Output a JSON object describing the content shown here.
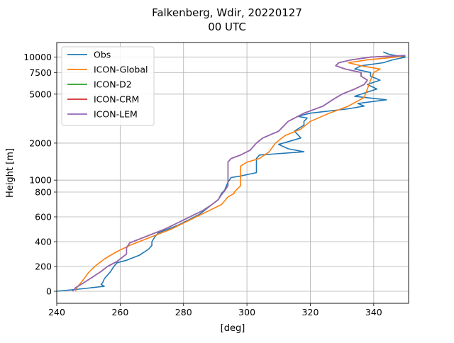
{
  "chart_data": {
    "type": "line",
    "title_line1": "Falkenberg, Wdir, 20220127",
    "title_line2": "00 UTC",
    "xlabel": "[deg]",
    "ylabel": "Height [m]",
    "xlim": [
      240,
      351
    ],
    "x_ticks": [
      240,
      260,
      280,
      300,
      320,
      340
    ],
    "y_ticks": [
      {
        "value": 0,
        "label": "0"
      },
      {
        "value": 200,
        "label": "200"
      },
      {
        "value": 400,
        "label": "400"
      },
      {
        "value": 600,
        "label": "600"
      },
      {
        "value": 800,
        "label": "800"
      },
      {
        "value": 1000,
        "label": "1000"
      },
      {
        "value": 2000,
        "label": "2000"
      },
      {
        "value": 5000,
        "label": "5000"
      },
      {
        "value": 7500,
        "label": "7500"
      },
      {
        "value": 10000,
        "label": "10000"
      }
    ],
    "y_scale": "piecewise linear 0-800 m, log above",
    "grid": true,
    "legend_position": "upper-left",
    "series": [
      {
        "name": "Obs",
        "color": "#1f77b4",
        "points": [
          [
            240,
            0
          ],
          [
            248,
            20
          ],
          [
            255,
            40
          ],
          [
            254,
            55
          ],
          [
            254.5,
            70
          ],
          [
            255,
            100
          ],
          [
            256,
            130
          ],
          [
            257,
            160
          ],
          [
            258,
            200
          ],
          [
            259,
            230
          ],
          [
            262,
            250
          ],
          [
            266,
            290
          ],
          [
            269,
            340
          ],
          [
            270,
            370
          ],
          [
            270,
            400
          ],
          [
            271,
            440
          ],
          [
            272,
            470
          ],
          [
            274,
            490
          ],
          [
            278,
            530
          ],
          [
            282,
            580
          ],
          [
            285,
            620
          ],
          [
            287,
            660
          ],
          [
            289,
            700
          ],
          [
            291,
            740
          ],
          [
            292,
            790
          ],
          [
            293,
            830
          ],
          [
            293.5,
            900
          ],
          [
            294,
            960
          ],
          [
            295,
            1050
          ],
          [
            298,
            1080
          ],
          [
            303,
            1150
          ],
          [
            303,
            1300
          ],
          [
            303,
            1500
          ],
          [
            304,
            1600
          ],
          [
            318,
            1700
          ],
          [
            313,
            1800
          ],
          [
            310,
            1950
          ],
          [
            317,
            2200
          ],
          [
            315,
            2500
          ],
          [
            318,
            2800
          ],
          [
            318,
            3000
          ],
          [
            319,
            3200
          ],
          [
            316,
            3300
          ],
          [
            320,
            3500
          ],
          [
            332,
            3800
          ],
          [
            337,
            4000
          ],
          [
            335,
            4200
          ],
          [
            344,
            4500
          ],
          [
            334,
            4800
          ],
          [
            338,
            5200
          ],
          [
            341,
            5500
          ],
          [
            338,
            6000
          ],
          [
            342,
            6500
          ],
          [
            339,
            7000
          ],
          [
            339,
            7500
          ],
          [
            334,
            8000
          ],
          [
            336,
            8500
          ],
          [
            343,
            9000
          ],
          [
            346,
            9500
          ],
          [
            350,
            10000
          ],
          [
            345,
            10500
          ],
          [
            343,
            11000
          ]
        ]
      },
      {
        "name": "ICON-Global",
        "color": "#ff7f0e",
        "points": [
          [
            246,
            0
          ],
          [
            246,
            20
          ],
          [
            248,
            80
          ],
          [
            250,
            150
          ],
          [
            252,
            200
          ],
          [
            255,
            260
          ],
          [
            259,
            320
          ],
          [
            263,
            370
          ],
          [
            268,
            420
          ],
          [
            272,
            460
          ],
          [
            276,
            500
          ],
          [
            280,
            550
          ],
          [
            284,
            600
          ],
          [
            288,
            650
          ],
          [
            292,
            700
          ],
          [
            294,
            760
          ],
          [
            296,
            790
          ],
          [
            296,
            800
          ],
          [
            297,
            850
          ],
          [
            298,
            900
          ],
          [
            298,
            1000
          ],
          [
            298,
            1200
          ],
          [
            298,
            1300
          ],
          [
            300,
            1400
          ],
          [
            304,
            1500
          ],
          [
            307,
            1700
          ],
          [
            309,
            2000
          ],
          [
            312,
            2300
          ],
          [
            317,
            2600
          ],
          [
            320,
            3000
          ],
          [
            326,
            3500
          ],
          [
            332,
            4000
          ],
          [
            337,
            4700
          ],
          [
            338,
            5500
          ],
          [
            339,
            6500
          ],
          [
            340,
            7500
          ],
          [
            342,
            8000
          ],
          [
            336,
            8500
          ],
          [
            332,
            9000
          ],
          [
            338,
            9500
          ],
          [
            347,
            10000
          ],
          [
            350,
            10300
          ]
        ]
      },
      {
        "name": "ICON-D2",
        "color": "#2ca02c",
        "points": [
          [
            245,
            0
          ],
          [
            246,
            30
          ],
          [
            248,
            60
          ],
          [
            251,
            110
          ],
          [
            254,
            160
          ],
          [
            256,
            200
          ],
          [
            259,
            240
          ],
          [
            261,
            280
          ],
          [
            262,
            300
          ],
          [
            262,
            350
          ],
          [
            263,
            390
          ],
          [
            266,
            420
          ],
          [
            270,
            460
          ],
          [
            274,
            500
          ],
          [
            278,
            550
          ],
          [
            282,
            600
          ],
          [
            286,
            650
          ],
          [
            289,
            700
          ],
          [
            291,
            740
          ],
          [
            292,
            780
          ],
          [
            293,
            820
          ],
          [
            294,
            900
          ],
          [
            294,
            1000
          ],
          [
            294,
            1200
          ],
          [
            294,
            1400
          ],
          [
            295,
            1500
          ],
          [
            298,
            1600
          ],
          [
            301,
            1750
          ],
          [
            303,
            2000
          ],
          [
            305,
            2200
          ],
          [
            310,
            2500
          ],
          [
            313,
            3000
          ],
          [
            318,
            3500
          ],
          [
            324,
            4000
          ],
          [
            327,
            4500
          ],
          [
            330,
            5000
          ],
          [
            334,
            5500
          ],
          [
            337,
            6000
          ],
          [
            338,
            6500
          ],
          [
            336,
            7000
          ],
          [
            336,
            7500
          ],
          [
            331,
            8000
          ],
          [
            328,
            8500
          ],
          [
            329,
            9000
          ],
          [
            333,
            9500
          ],
          [
            339,
            10000
          ],
          [
            350,
            10300
          ]
        ]
      },
      {
        "name": "ICON-CRM",
        "color": "#d62728",
        "points": [
          [
            245,
            0
          ],
          [
            246,
            30
          ],
          [
            248,
            60
          ],
          [
            251,
            110
          ],
          [
            254,
            160
          ],
          [
            256,
            200
          ],
          [
            259,
            240
          ],
          [
            261,
            280
          ],
          [
            262,
            300
          ],
          [
            262,
            350
          ],
          [
            263,
            390
          ],
          [
            266,
            420
          ],
          [
            270,
            460
          ],
          [
            274,
            500
          ],
          [
            278,
            550
          ],
          [
            282,
            600
          ],
          [
            286,
            650
          ],
          [
            289,
            700
          ],
          [
            291,
            740
          ],
          [
            292,
            780
          ],
          [
            293,
            820
          ],
          [
            294,
            900
          ],
          [
            294,
            1000
          ],
          [
            294,
            1200
          ],
          [
            294,
            1400
          ],
          [
            295,
            1500
          ],
          [
            298,
            1600
          ],
          [
            301,
            1750
          ],
          [
            303,
            2000
          ],
          [
            305,
            2200
          ],
          [
            310,
            2500
          ],
          [
            313,
            3000
          ],
          [
            318,
            3500
          ],
          [
            324,
            4000
          ],
          [
            327,
            4500
          ],
          [
            330,
            5000
          ],
          [
            334,
            5500
          ],
          [
            337,
            6000
          ],
          [
            338,
            6500
          ],
          [
            336,
            7000
          ],
          [
            336,
            7500
          ],
          [
            331,
            8000
          ],
          [
            328,
            8500
          ],
          [
            329,
            9000
          ],
          [
            333,
            9500
          ],
          [
            339,
            10000
          ],
          [
            350,
            10300
          ]
        ]
      },
      {
        "name": "ICON-LEM",
        "color": "#9467bd",
        "points": [
          [
            245,
            0
          ],
          [
            246,
            30
          ],
          [
            248,
            60
          ],
          [
            251,
            110
          ],
          [
            254,
            160
          ],
          [
            256,
            200
          ],
          [
            259,
            240
          ],
          [
            261,
            280
          ],
          [
            262,
            300
          ],
          [
            262,
            350
          ],
          [
            263,
            390
          ],
          [
            266,
            420
          ],
          [
            270,
            460
          ],
          [
            274,
            500
          ],
          [
            278,
            550
          ],
          [
            282,
            600
          ],
          [
            286,
            650
          ],
          [
            289,
            700
          ],
          [
            291,
            740
          ],
          [
            292,
            780
          ],
          [
            293,
            820
          ],
          [
            294,
            900
          ],
          [
            294,
            1000
          ],
          [
            294,
            1200
          ],
          [
            294,
            1400
          ],
          [
            295,
            1500
          ],
          [
            298,
            1600
          ],
          [
            301,
            1750
          ],
          [
            303,
            2000
          ],
          [
            305,
            2200
          ],
          [
            310,
            2500
          ],
          [
            313,
            3000
          ],
          [
            318,
            3500
          ],
          [
            324,
            4000
          ],
          [
            327,
            4500
          ],
          [
            330,
            5000
          ],
          [
            334,
            5500
          ],
          [
            337,
            6000
          ],
          [
            338,
            6500
          ],
          [
            336,
            7000
          ],
          [
            336,
            7500
          ],
          [
            331,
            8000
          ],
          [
            328,
            8500
          ],
          [
            329,
            9000
          ],
          [
            333,
            9500
          ],
          [
            339,
            10000
          ],
          [
            350,
            10300
          ]
        ]
      }
    ]
  }
}
